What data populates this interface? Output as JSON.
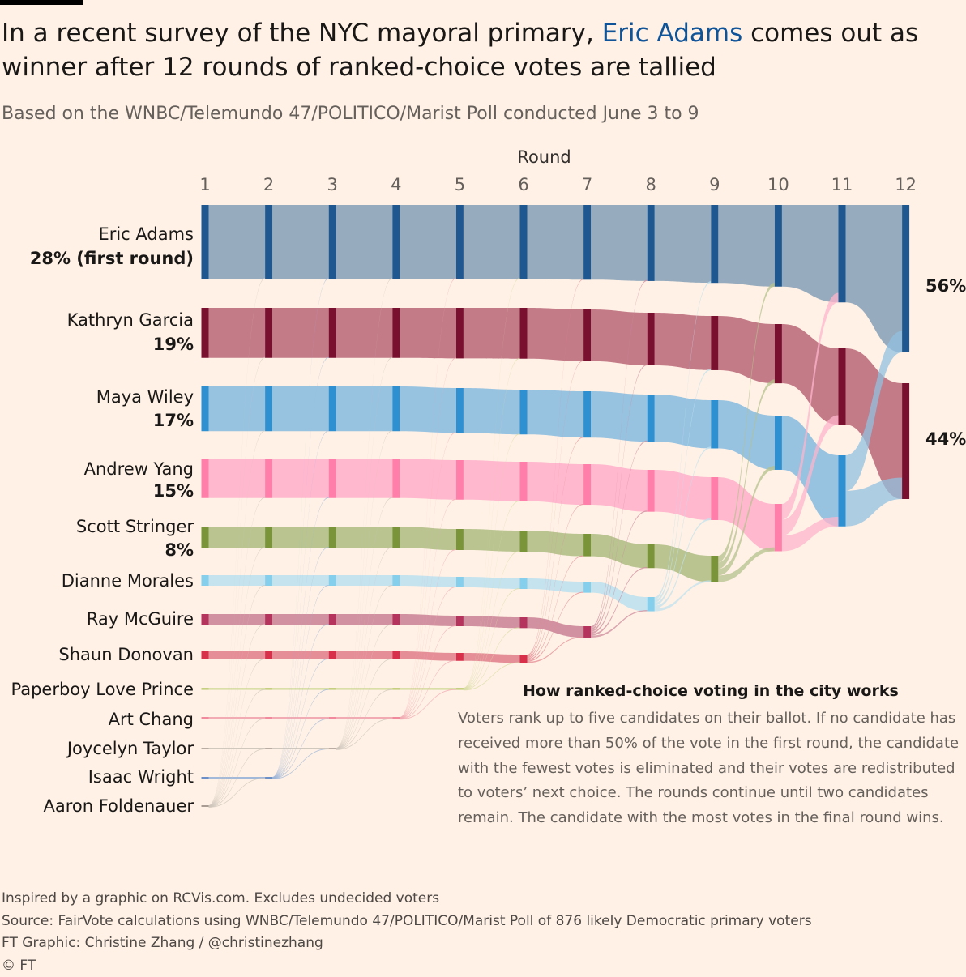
{
  "header": {
    "title_pre": "In a recent survey of the NYC mayoral primary, ",
    "title_highlight": "Eric Adams",
    "title_post": " comes out as winner after 12 rounds of ranked-choice votes are tallied",
    "subtitle": "Based on the WNBC/Telemundo 47/POLITICO/Marist Poll conducted June 3 to 9"
  },
  "explainer": {
    "title": "How ranked-choice voting in the city works",
    "body": "Voters rank up to five candidates on their ballot. If no candidate has received more than 50% of the vote in the first round, the candidate with the fewest votes is eliminated and their votes are redistributed to voters’ next choice. The rounds continue until two candidates remain. The candidate with the most votes in the final round wins."
  },
  "footer": {
    "line1": "Inspired by a graphic on RCVis.com. Excludes undecided voters",
    "line2": "Source: FairVote calculations using WNBC/Telemundo 47/POLITICO/Marist Poll of 876 likely Democratic primary voters",
    "line3": "FT Graphic: Christine Zhang / @christinezhang",
    "line4": "© FT"
  },
  "chart_data": {
    "type": "sankey",
    "xlabel": "Round",
    "rounds": [
      1,
      2,
      3,
      4,
      5,
      6,
      7,
      8,
      9,
      10,
      11,
      12
    ],
    "value_unit": "%",
    "candidates": [
      {
        "name": "Eric Adams",
        "first_round_label": "28% (first round)",
        "color": "#1f5891",
        "flow_color": "#90a6bb",
        "eliminated_after": null,
        "values": [
          28,
          28,
          28,
          28,
          28,
          28,
          28.4,
          28.9,
          29.6,
          31,
          37,
          56
        ]
      },
      {
        "name": "Kathryn Garcia",
        "first_round_label": "19%",
        "color": "#7a1030",
        "flow_color": "#c07483",
        "eliminated_after": 12,
        "values": [
          19,
          19,
          19,
          19,
          19.2,
          19.3,
          19.6,
          20,
          20.6,
          22.5,
          29,
          44
        ]
      },
      {
        "name": "Maya Wiley",
        "first_round_label": "17%",
        "color": "#2e8fd1",
        "flow_color": "#91c0e0",
        "eliminated_after": 11,
        "values": [
          17,
          17,
          17,
          17,
          17,
          17,
          17.6,
          17.9,
          18.3,
          20.6,
          27
        ]
      },
      {
        "name": "Andrew Yang",
        "first_round_label": "15%",
        "color": "#ff7eaa",
        "flow_color": "#ffb4cc",
        "eliminated_after": 10,
        "values": [
          15,
          15,
          15,
          15,
          15,
          15,
          15.4,
          15.9,
          16.3,
          18
        ]
      },
      {
        "name": "Scott Stringer",
        "first_round_label": "8%",
        "color": "#7a9539",
        "flow_color": "#b5c18c",
        "eliminated_after": 9,
        "values": [
          8,
          8,
          8,
          8,
          8,
          8,
          8.5,
          9,
          10
        ]
      },
      {
        "name": "Dianne Morales",
        "first_round_label": "",
        "color": "#85cfec",
        "flow_color": "#c1e1ee",
        "eliminated_after": 8,
        "values": [
          4,
          4,
          4,
          4,
          4,
          4,
          4.2,
          5.4
        ]
      },
      {
        "name": "Ray McGuire",
        "first_round_label": "",
        "color": "#b5345d",
        "flow_color": "#cf8b9c",
        "eliminated_after": 7,
        "values": [
          4,
          4,
          4,
          4,
          4,
          4.1,
          4.3
        ]
      },
      {
        "name": "Shaun Donovan",
        "first_round_label": "",
        "color": "#d82f4b",
        "flow_color": "#e48893",
        "eliminated_after": 6,
        "values": [
          3,
          3,
          3,
          3,
          3,
          3.2
        ]
      },
      {
        "name": "Paperboy Love Prince",
        "first_round_label": "",
        "color": "#c5cf7f",
        "flow_color": "#d8dca3",
        "eliminated_after": 5,
        "values": [
          0.8,
          0.8,
          0.8,
          0.8,
          0.8
        ]
      },
      {
        "name": "Art Chang",
        "first_round_label": "",
        "color": "#f08a9c",
        "flow_color": "#f2a7b0",
        "eliminated_after": 4,
        "values": [
          0.8,
          0.8,
          0.8,
          0.8
        ]
      },
      {
        "name": "Joycelyn Taylor",
        "first_round_label": "",
        "color": "#b9ada3",
        "flow_color": "#cfc5bb",
        "eliminated_after": 3,
        "values": [
          0.2,
          0.2,
          0.2
        ]
      },
      {
        "name": "Isaac Wright",
        "first_round_label": "",
        "color": "#6b8fc7",
        "flow_color": "#9eb5d8",
        "eliminated_after": 2,
        "values": [
          0.2,
          0.2
        ]
      },
      {
        "name": "Aaron Foldenauer",
        "first_round_label": "",
        "color": "#a89c93",
        "flow_color": "#cfc5bb",
        "eliminated_after": 1,
        "values": [
          0.1
        ]
      }
    ],
    "final_labels": [
      {
        "candidate": "Eric Adams",
        "label": "56%"
      },
      {
        "candidate": "Kathryn Garcia",
        "label": "44%"
      }
    ]
  }
}
